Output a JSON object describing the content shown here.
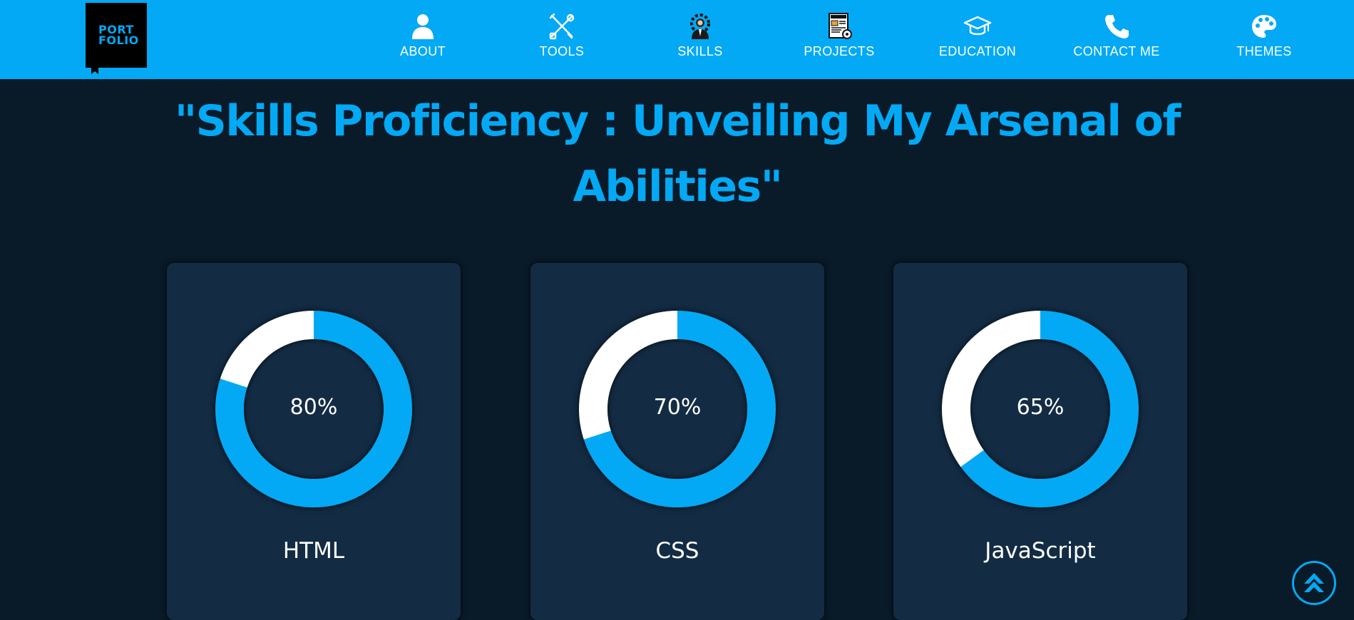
{
  "logo": {
    "line1": "PORT",
    "line2": "FOLIO"
  },
  "nav": [
    {
      "label": "ABOUT",
      "icon": "user-icon"
    },
    {
      "label": "TOOLS",
      "icon": "tools-icon"
    },
    {
      "label": "SKILLS",
      "icon": "skills-gear-person-icon"
    },
    {
      "label": "PROJECTS",
      "icon": "project-document-icon"
    },
    {
      "label": "EDUCATION",
      "icon": "graduation-cap-icon"
    },
    {
      "label": "CONTACT ME",
      "icon": "phone-icon"
    },
    {
      "label": "THEMES",
      "icon": "palette-icon"
    }
  ],
  "title": "\"Skills Proficiency : Unveiling My Arsenal of Abilities\"",
  "skills": [
    {
      "name": "HTML",
      "percent_label": "80%",
      "percent": 80
    },
    {
      "name": "CSS",
      "percent_label": "70%",
      "percent": 70
    },
    {
      "name": "JavaScript",
      "percent_label": "65%",
      "percent": 65
    }
  ],
  "colors": {
    "accent": "#03a9f4",
    "background": "#091a28",
    "card": "#132c44",
    "ring_remainder": "#ffffff"
  },
  "scroll_top_icon": "chevron-up-icon"
}
